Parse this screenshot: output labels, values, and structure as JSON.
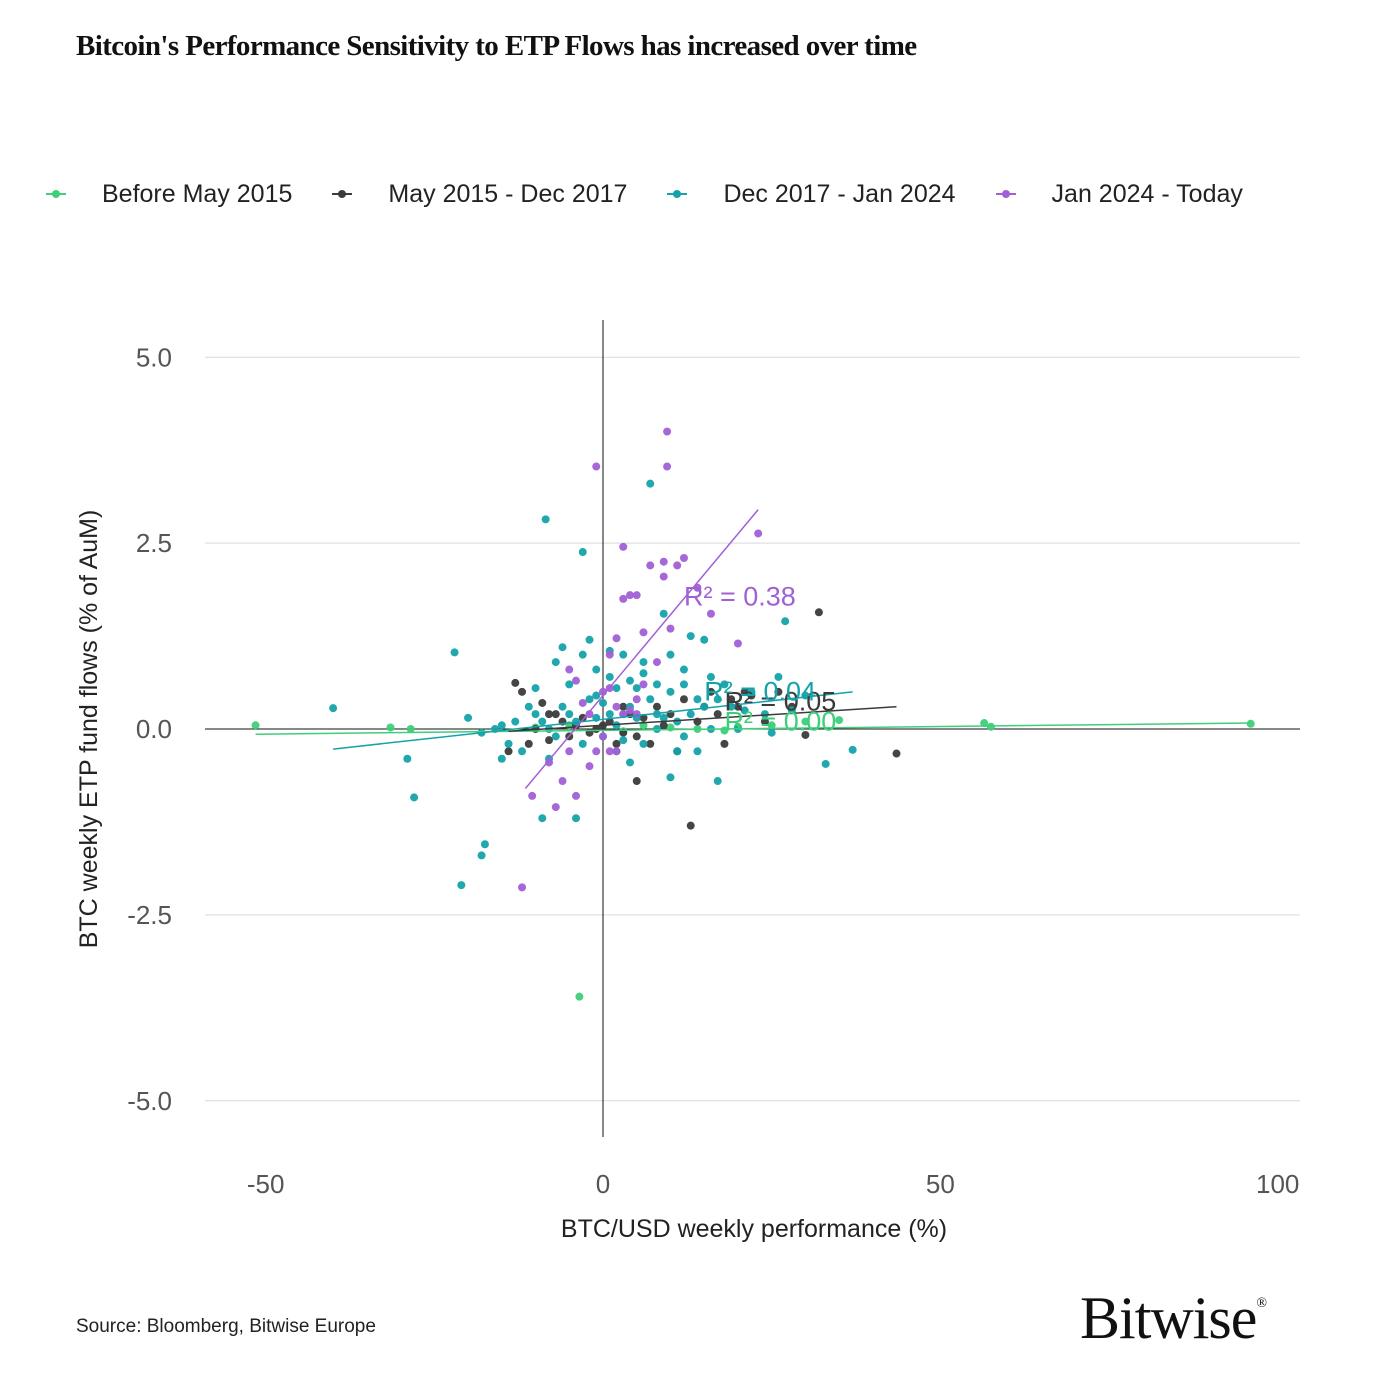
{
  "title": "Bitcoin's Performance Sensitivity to ETP Flows has increased over time",
  "source": "Source: Bloomberg, Bitwise Europe",
  "brand": {
    "name": "Bitwise",
    "mark": "®"
  },
  "legend": [
    {
      "label": "Before May 2015",
      "color": "#3ecf7a"
    },
    {
      "label": "May 2015 - Dec 2017",
      "color": "#3b3b3b"
    },
    {
      "label": "Dec 2017 - Jan 2024",
      "color": "#14a3aa"
    },
    {
      "label": "Jan 2024 - Today",
      "color": "#a160d6"
    }
  ],
  "chart_data": {
    "type": "scatter",
    "title": "Bitcoin's Performance Sensitivity to ETP Flows has increased over time",
    "xlabel": "BTC/USD weekly performance (%)",
    "ylabel": "BTC weekly ETP fund flows (% of AuM)",
    "xlim": [
      -60,
      103
    ],
    "ylim": [
      -5.5,
      5.5
    ],
    "xticks": [
      -50,
      0,
      50,
      100
    ],
    "xtick_labels": [
      "-50",
      "0",
      "50",
      "100"
    ],
    "yticks": [
      5.0,
      2.5,
      0.0,
      -2.5,
      -5.0
    ],
    "ytick_labels": [
      "5.0",
      "2.5",
      "0.0",
      "-2.5",
      "-5.0"
    ],
    "grid": "horizontal",
    "legend_position": "top",
    "series": [
      {
        "name": "Before May 2015",
        "color": "#3ecf7a",
        "r2_label": "R² = 0.00",
        "trend": [
          [
            -51.5,
            -0.07
          ],
          [
            96,
            0.08
          ]
        ],
        "points": [
          [
            -51.5,
            0.05
          ],
          [
            -31.5,
            0.02
          ],
          [
            -28.5,
            0.0
          ],
          [
            -3.5,
            -3.6
          ],
          [
            6,
            0.05
          ],
          [
            10,
            0.02
          ],
          [
            14,
            0.0
          ],
          [
            20,
            0.03
          ],
          [
            25,
            0.05
          ],
          [
            30,
            0.1
          ],
          [
            35,
            0.12
          ],
          [
            56.5,
            0.08
          ],
          [
            57.5,
            0.03
          ],
          [
            96,
            0.07
          ],
          [
            -10,
            0.02
          ],
          [
            -5,
            0.05
          ],
          [
            3,
            -0.03
          ],
          [
            18,
            -0.02
          ]
        ]
      },
      {
        "name": "May 2015 - Dec 2017",
        "color": "#3b3b3b",
        "r2_label": "R² = 0.05",
        "trend": [
          [
            -14,
            -0.03
          ],
          [
            43.5,
            0.3
          ]
        ],
        "points": [
          [
            -13,
            0.62
          ],
          [
            -12,
            0.5
          ],
          [
            -14,
            -0.3
          ],
          [
            -11,
            -0.2
          ],
          [
            -10,
            0.0
          ],
          [
            -9,
            0.35
          ],
          [
            -8,
            -0.15
          ],
          [
            -7,
            0.2
          ],
          [
            -6,
            0.1
          ],
          [
            -5,
            -0.1
          ],
          [
            -4,
            0.05
          ],
          [
            -3,
            0.15
          ],
          [
            -2,
            -0.05
          ],
          [
            -1,
            0.0
          ],
          [
            1,
            0.1
          ],
          [
            2,
            -0.2
          ],
          [
            3,
            0.3
          ],
          [
            4,
            0.2
          ],
          [
            5,
            -0.1
          ],
          [
            5,
            -0.7
          ],
          [
            6,
            0.15
          ],
          [
            7,
            -0.2
          ],
          [
            8,
            0.3
          ],
          [
            9,
            0.05
          ],
          [
            10,
            0.2
          ],
          [
            11,
            -0.3
          ],
          [
            12,
            0.4
          ],
          [
            13,
            -1.3
          ],
          [
            14,
            0.1
          ],
          [
            15,
            0.3
          ],
          [
            16,
            0.5
          ],
          [
            17,
            0.2
          ],
          [
            18,
            -0.2
          ],
          [
            19,
            0.4
          ],
          [
            20,
            0.3
          ],
          [
            21,
            0.5
          ],
          [
            22,
            0.45
          ],
          [
            24,
            0.1
          ],
          [
            26,
            0.5
          ],
          [
            28,
            0.3
          ],
          [
            30,
            -0.08
          ],
          [
            32,
            1.57
          ],
          [
            43.5,
            -0.33
          ],
          [
            -8,
            0.2
          ],
          [
            0,
            0.05
          ],
          [
            3,
            -0.05
          ]
        ]
      },
      {
        "name": "Dec 2017 - Jan 2024",
        "color": "#14a3aa",
        "r2_label": "R² = 0.04",
        "trend": [
          [
            -40,
            -0.27
          ],
          [
            37,
            0.5
          ]
        ],
        "points": [
          [
            -40,
            0.28
          ],
          [
            -22,
            1.03
          ],
          [
            -21,
            -2.1
          ],
          [
            -18,
            -1.7
          ],
          [
            -17.5,
            -1.55
          ],
          [
            -29,
            -0.4
          ],
          [
            -28,
            -0.92
          ],
          [
            -20,
            0.15
          ],
          [
            -18,
            -0.05
          ],
          [
            -16,
            0.0
          ],
          [
            -15,
            0.05
          ],
          [
            -14,
            -0.2
          ],
          [
            -13,
            0.1
          ],
          [
            -12,
            -0.3
          ],
          [
            -11,
            0.3
          ],
          [
            -10,
            0.55
          ],
          [
            -9,
            -1.2
          ],
          [
            -8.5,
            2.82
          ],
          [
            -8,
            0.0
          ],
          [
            -7,
            0.9
          ],
          [
            -6,
            1.1
          ],
          [
            -5,
            0.6
          ],
          [
            -4,
            -1.2
          ],
          [
            -3,
            2.38
          ],
          [
            -2,
            1.2
          ],
          [
            -1,
            0.8
          ],
          [
            0,
            -0.1
          ],
          [
            1,
            0.7
          ],
          [
            2,
            -0.3
          ],
          [
            3,
            1.0
          ],
          [
            4,
            0.3
          ],
          [
            5,
            0.55
          ],
          [
            6,
            0.9
          ],
          [
            7,
            3.3
          ],
          [
            8,
            0.2
          ],
          [
            9,
            1.55
          ],
          [
            10,
            0.5
          ],
          [
            10,
            -0.65
          ],
          [
            11,
            -0.3
          ],
          [
            12,
            0.6
          ],
          [
            13,
            1.25
          ],
          [
            14,
            0.4
          ],
          [
            15,
            0.3
          ],
          [
            15,
            1.2
          ],
          [
            16,
            0.0
          ],
          [
            17,
            0.4
          ],
          [
            17,
            -0.7
          ],
          [
            18,
            0.6
          ],
          [
            19,
            0.3
          ],
          [
            20,
            0.0
          ],
          [
            21,
            0.25
          ],
          [
            22,
            0.5
          ],
          [
            24,
            0.2
          ],
          [
            25,
            -0.05
          ],
          [
            26,
            0.7
          ],
          [
            27,
            1.45
          ],
          [
            28,
            0.25
          ],
          [
            30,
            0.45
          ],
          [
            33,
            -0.47
          ],
          [
            37,
            -0.28
          ],
          [
            -10,
            0.2
          ],
          [
            -7,
            -0.1
          ],
          [
            -6,
            0.3
          ],
          [
            -4,
            0.1
          ],
          [
            -3,
            -0.2
          ],
          [
            -2,
            0.4
          ],
          [
            -1,
            0.15
          ],
          [
            1,
            0.2
          ],
          [
            2,
            0.05
          ],
          [
            3,
            -0.15
          ],
          [
            4,
            0.65
          ],
          [
            5,
            0.15
          ],
          [
            6,
            -0.2
          ],
          [
            7,
            0.4
          ],
          [
            8,
            0.0
          ],
          [
            9,
            0.15
          ],
          [
            11,
            0.1
          ],
          [
            12,
            -0.1
          ],
          [
            13,
            0.2
          ],
          [
            14,
            -0.3
          ],
          [
            -15,
            -0.4
          ],
          [
            -9,
            0.1
          ],
          [
            -8,
            -0.4
          ],
          [
            -5,
            0.2
          ],
          [
            0,
            0.35
          ],
          [
            2,
            0.55
          ],
          [
            4,
            -0.45
          ],
          [
            6,
            0.75
          ],
          [
            8,
            0.6
          ],
          [
            10,
            1.0
          ],
          [
            12,
            0.8
          ],
          [
            16,
            0.7
          ],
          [
            -3,
            1.0
          ],
          [
            -1,
            0.45
          ],
          [
            1,
            1.05
          ],
          [
            3,
            0.2
          ]
        ]
      },
      {
        "name": "Jan 2024 - Today",
        "color": "#a160d6",
        "r2_label": "R² = 0.38",
        "trend": [
          [
            -11.5,
            -0.8
          ],
          [
            23,
            2.95
          ]
        ],
        "points": [
          [
            -1,
            3.53
          ],
          [
            9.5,
            4.0
          ],
          [
            9.5,
            3.53
          ],
          [
            23,
            2.63
          ],
          [
            -12,
            -2.13
          ],
          [
            -10.5,
            -0.9
          ],
          [
            -8,
            -0.45
          ],
          [
            -7,
            -1.05
          ],
          [
            -6,
            -0.7
          ],
          [
            -5,
            -0.3
          ],
          [
            -4,
            -0.9
          ],
          [
            -3,
            0.35
          ],
          [
            -2,
            -0.5
          ],
          [
            -1,
            -0.3
          ],
          [
            0,
            -0.1
          ],
          [
            1,
            0.55
          ],
          [
            2,
            1.22
          ],
          [
            2,
            -0.3
          ],
          [
            3,
            1.75
          ],
          [
            3,
            2.45
          ],
          [
            4,
            1.8
          ],
          [
            4,
            0.25
          ],
          [
            5,
            1.8
          ],
          [
            5,
            0.4
          ],
          [
            6,
            1.3
          ],
          [
            7,
            2.2
          ],
          [
            8,
            0.9
          ],
          [
            9,
            2.25
          ],
          [
            9,
            2.05
          ],
          [
            10,
            1.35
          ],
          [
            11,
            2.2
          ],
          [
            12,
            2.3
          ],
          [
            14,
            1.9
          ],
          [
            16,
            1.55
          ],
          [
            20,
            1.15
          ],
          [
            1,
            1.0
          ],
          [
            2,
            0.3
          ],
          [
            -5,
            0.8
          ],
          [
            -4,
            0.65
          ],
          [
            -2,
            0.2
          ],
          [
            0,
            0.5
          ],
          [
            1,
            -0.3
          ],
          [
            3,
            0.2
          ],
          [
            5,
            0.2
          ],
          [
            6,
            0.6
          ]
        ]
      }
    ]
  }
}
